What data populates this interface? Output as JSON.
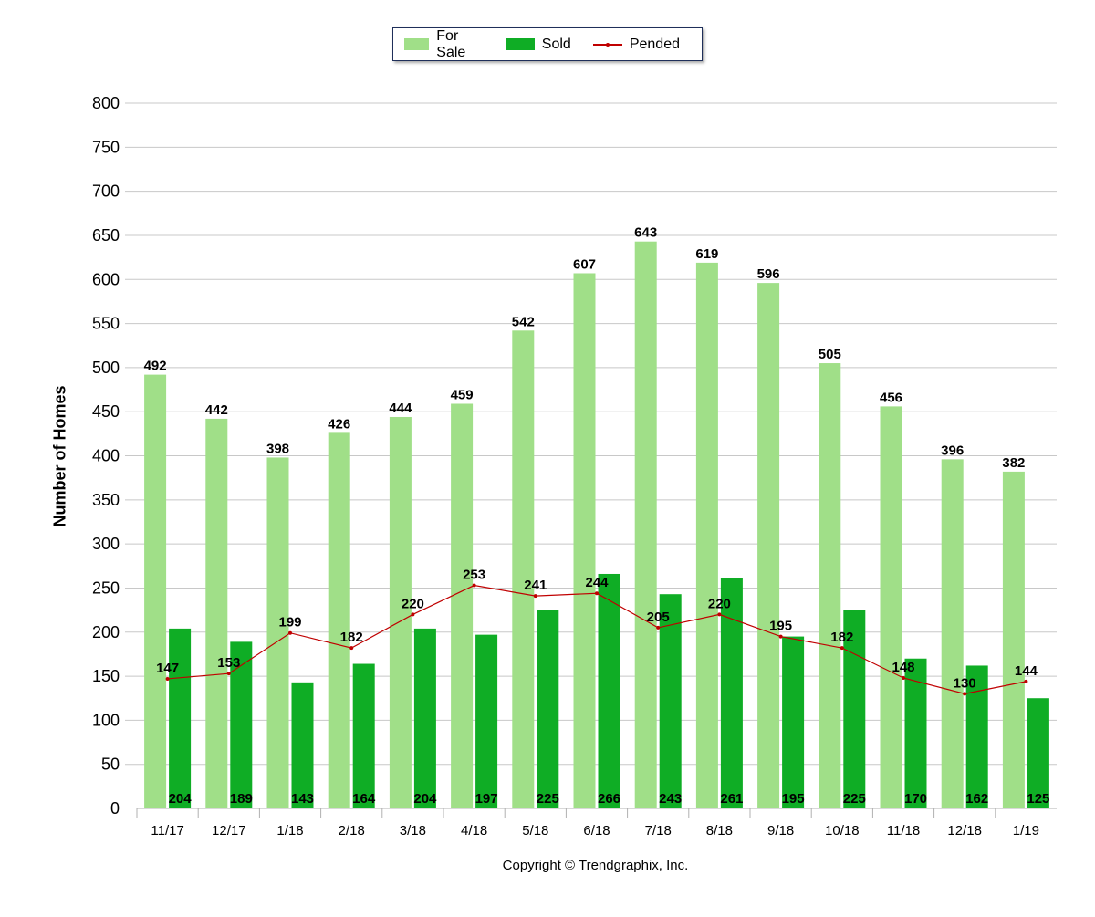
{
  "chart_data": {
    "type": "bar",
    "categories": [
      "11/17",
      "12/17",
      "1/18",
      "2/18",
      "3/18",
      "4/18",
      "5/18",
      "6/18",
      "7/18",
      "8/18",
      "9/18",
      "10/18",
      "11/18",
      "12/18",
      "1/19"
    ],
    "series": [
      {
        "name": "For Sale",
        "type": "bar",
        "color": "#a0df88",
        "values": [
          492,
          442,
          398,
          426,
          444,
          459,
          542,
          607,
          643,
          619,
          596,
          505,
          456,
          396,
          382
        ]
      },
      {
        "name": "Sold",
        "type": "bar",
        "color": "#0fad25",
        "values": [
          204,
          189,
          143,
          164,
          204,
          197,
          225,
          266,
          243,
          261,
          195,
          225,
          170,
          162,
          125
        ]
      },
      {
        "name": "Pended",
        "type": "line",
        "color": "#c00000",
        "values": [
          147,
          153,
          199,
          182,
          220,
          253,
          241,
          244,
          205,
          220,
          195,
          182,
          148,
          130,
          144
        ]
      }
    ],
    "ylabel": "Number of Homes",
    "ylim": [
      0,
      800
    ],
    "yticks": [
      0,
      50,
      100,
      150,
      200,
      250,
      300,
      350,
      400,
      450,
      500,
      550,
      600,
      650,
      700,
      750,
      800
    ],
    "grid": true,
    "legend_position": "top-center"
  },
  "footer": {
    "copyright": "Copyright © Trendgraphix, Inc."
  }
}
